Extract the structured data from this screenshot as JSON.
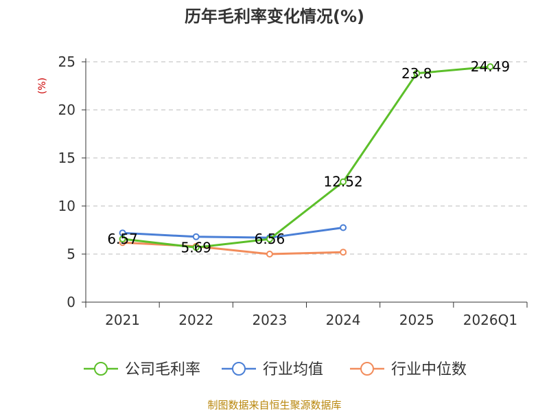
{
  "chart_data": {
    "type": "line",
    "title": "历年毛利率变化情况(%)",
    "ylabel": "(%)",
    "xlabel": "",
    "categories": [
      "2021",
      "2022",
      "2023",
      "2024",
      "2025",
      "2026Q1"
    ],
    "ylim": [
      0,
      25
    ],
    "yticks": [
      0,
      5,
      10,
      15,
      20,
      25
    ],
    "grid": true,
    "legend_position": "bottom",
    "series": [
      {
        "name": "公司毛利率",
        "color": "#5cbf2a",
        "values": [
          6.57,
          5.69,
          6.56,
          12.52,
          23.8,
          24.49
        ],
        "labels": [
          "6.57",
          "5.69",
          "6.56",
          "12.52",
          "23.8",
          "24.49"
        ]
      },
      {
        "name": "行业均值",
        "color": "#4a7fd6",
        "values": [
          7.2,
          6.8,
          6.7,
          7.75,
          null,
          null
        ]
      },
      {
        "name": "行业中位数",
        "color": "#f28c5b",
        "values": [
          6.2,
          5.8,
          5.0,
          5.2,
          null,
          null
        ]
      }
    ],
    "source": "制图数据来自恒生聚源数据库"
  }
}
